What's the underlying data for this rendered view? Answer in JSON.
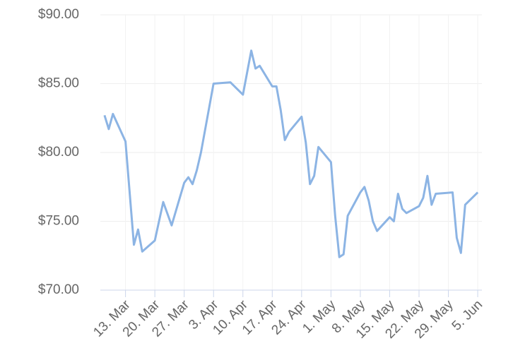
{
  "chart_data": {
    "type": "line",
    "x": [
      "8. Mar",
      "9. Mar",
      "10. Mar",
      "13. Mar",
      "15. Mar",
      "16. Mar",
      "17. Mar",
      "20. Mar",
      "22. Mar",
      "24. Mar",
      "27. Mar",
      "28. Mar",
      "29. Mar",
      "30. Mar",
      "31. Mar",
      "3. Apr",
      "7. Apr",
      "10. Apr",
      "12. Apr",
      "13. Apr",
      "14. Apr",
      "17. Apr",
      "18. Apr",
      "19. Apr",
      "20. Apr",
      "21. Apr",
      "24. Apr",
      "25. Apr",
      "26. Apr",
      "27. Apr",
      "28. Apr",
      "1. May",
      "2. May",
      "3. May",
      "4. May",
      "5. May",
      "8. May",
      "9. May",
      "10. May",
      "11. May",
      "12. May",
      "15. May",
      "16. May",
      "17. May",
      "18. May",
      "19. May",
      "22. May",
      "23. May",
      "24. May",
      "25. May",
      "26. May",
      "30. May",
      "31. May",
      "1. Jun",
      "2. Jun",
      "5. Jun"
    ],
    "series": [
      {
        "color": "#8cb4e4",
        "values": [
          82.7,
          81.7,
          82.8,
          80.8,
          73.3,
          74.4,
          72.8,
          73.6,
          76.4,
          74.7,
          77.8,
          78.2,
          77.7,
          78.7,
          80.0,
          85.0,
          85.1,
          84.2,
          87.4,
          86.1,
          86.3,
          84.8,
          84.8,
          83.1,
          80.9,
          81.5,
          82.6,
          80.7,
          77.7,
          78.3,
          80.4,
          79.3,
          75.4,
          72.4,
          72.6,
          75.4,
          77.1,
          77.5,
          76.5,
          75.0,
          74.3,
          75.3,
          75.0,
          77.0,
          75.9,
          75.6,
          76.1,
          76.7,
          78.3,
          76.2,
          77.0,
          77.1,
          73.8,
          72.7,
          76.2,
          77.1
        ]
      }
    ],
    "xlim": [
      "7. Mar",
      "6. Jun"
    ],
    "xticks": [
      "13. Mar",
      "20. Mar",
      "27. Mar",
      "3. Apr",
      "10. Apr",
      "17. Apr",
      "24. Apr",
      "1. May",
      "8. May",
      "15. May",
      "22. May",
      "29. May",
      "5. Jun"
    ],
    "ylim": [
      70,
      90
    ],
    "yticks": [
      {
        "value": 70,
        "label": "$70.00"
      },
      {
        "value": 75,
        "label": "$75.00"
      },
      {
        "value": 80,
        "label": "$80.00"
      },
      {
        "value": 85,
        "label": "$85.00"
      },
      {
        "value": 90,
        "label": "$90.00"
      }
    ],
    "grid": true
  }
}
